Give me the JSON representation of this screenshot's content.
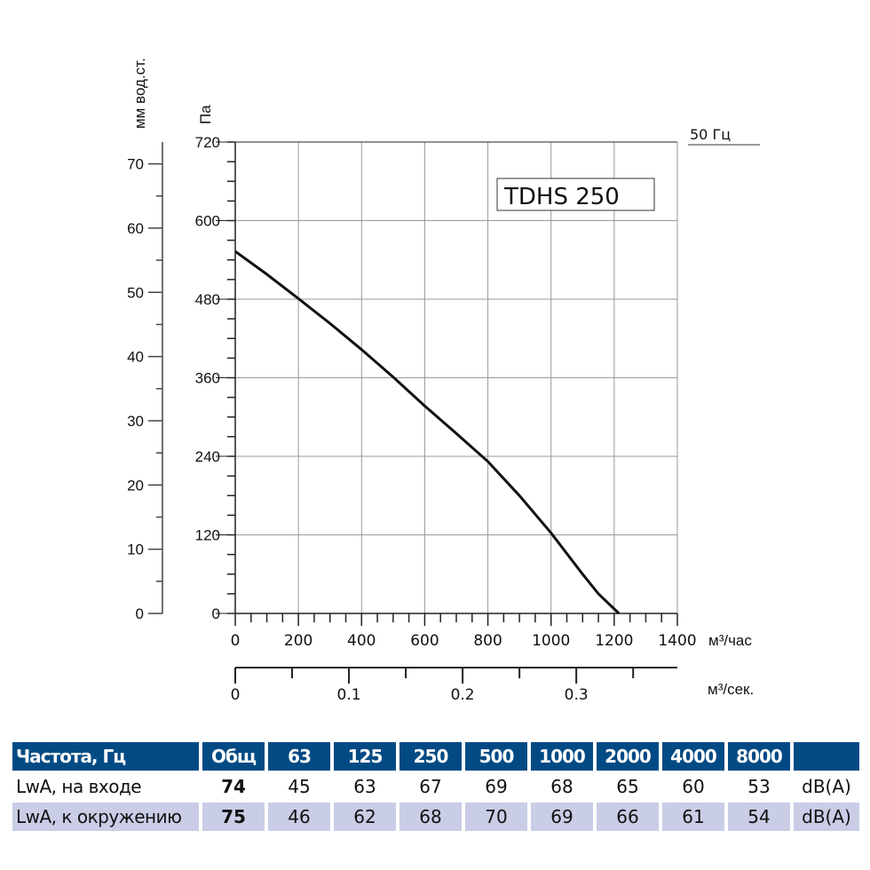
{
  "chart_data": {
    "type": "line",
    "title": "TDHS 250",
    "annotation": "50 Гц",
    "xlabel": "м³/час",
    "x2label": "м³/сек.",
    "ylabel": "Па",
    "y2label": "мм вод.ст.",
    "xlim": [
      0,
      1400
    ],
    "ylim": [
      0,
      720
    ],
    "x2lim": [
      0,
      0.3889
    ],
    "y2lim": [
      0,
      73.4
    ],
    "grid": true,
    "xticks": [
      "0",
      "200",
      "400",
      "600",
      "800",
      "1000",
      "1200",
      "1400"
    ],
    "yticks": [
      "0",
      "120",
      "240",
      "360",
      "480",
      "600",
      "720"
    ],
    "x2ticks": [
      "0",
      "0.1",
      "0.2",
      "0.3"
    ],
    "y2ticks": [
      "0",
      "10",
      "20",
      "30",
      "40",
      "50",
      "60",
      "70"
    ],
    "series": [
      {
        "x": [
          0,
          100,
          200,
          300,
          400,
          500,
          600,
          700,
          800,
          900,
          1000,
          1100,
          1150,
          1215
        ],
        "y": [
          553,
          518,
          481,
          443,
          403,
          361,
          317,
          275,
          232,
          180,
          123,
          60,
          30,
          0
        ]
      }
    ],
    "line_color": "#111111"
  },
  "table": {
    "header": [
      "Частота, Гц",
      "Общ",
      "63",
      "125",
      "250",
      "500",
      "1000",
      "2000",
      "4000",
      "8000",
      ""
    ],
    "rows": [
      {
        "label": "LwA, на входе",
        "total": "74",
        "values": [
          "45",
          "63",
          "67",
          "69",
          "68",
          "65",
          "60",
          "53"
        ],
        "unit": "dB(A)"
      },
      {
        "label": "LwA, к окружению",
        "total": "75",
        "values": [
          "46",
          "62",
          "68",
          "70",
          "69",
          "66",
          "61",
          "54"
        ],
        "unit": "dB(A)"
      }
    ],
    "header_color": "#014a84",
    "row_alt_color": "#c9cde6"
  }
}
